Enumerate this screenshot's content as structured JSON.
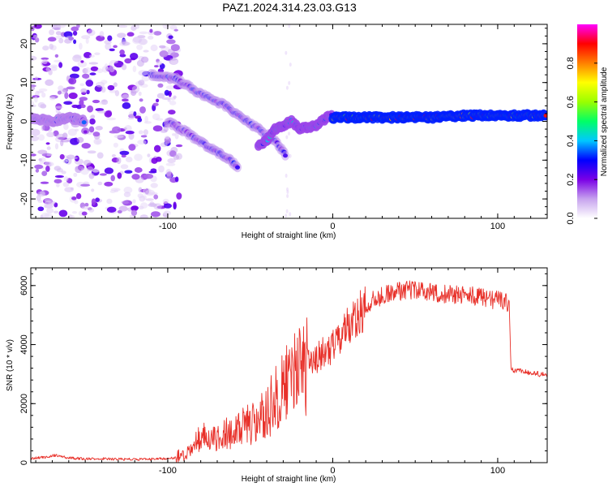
{
  "title": "PAZ1.2024.314.23.03.G13",
  "chart_data": [
    {
      "type": "heatmap",
      "title": "PAZ1.2024.314.23.03.G13",
      "xlabel": "Height of straight line (km)",
      "ylabel": "Frequency (Hz)",
      "xlim": [
        -183,
        130
      ],
      "ylim": [
        -25,
        25
      ],
      "xticks": [
        -100,
        0,
        100
      ],
      "yticks": [
        -20,
        -10,
        0,
        10,
        20
      ],
      "colorbar": {
        "label": "Normalized spectral amplitude",
        "range": [
          0,
          1
        ],
        "ticks": [
          0.0,
          0.2,
          0.4,
          0.6,
          0.8
        ],
        "colormap": [
          "#ffffff",
          "#c7a3ee",
          "#7a00e6",
          "#0000ff",
          "#00c8ff",
          "#00ff66",
          "#9aff00",
          "#ffff00",
          "#ff8000",
          "#ff0000",
          "#ff00ff"
        ]
      },
      "ridges": [
        {
          "name": "",
          "x": [
            -183,
            -170,
            -160,
            -150
          ],
          "y": [
            1,
            0,
            1,
            0
          ],
          "amplitude": 0.35
        },
        {
          "name": "",
          "x": [
            -110,
            -95,
            -80,
            -65,
            -55,
            -45,
            -35,
            -28
          ],
          "y": [
            12,
            11,
            7,
            4,
            1,
            -2,
            -5,
            -9
          ],
          "amplitude": 0.3
        },
        {
          "name": "",
          "x": [
            -100,
            -88,
            -78,
            -70,
            -62,
            -57
          ],
          "y": [
            0,
            -3,
            -6,
            -8,
            -10,
            -12
          ],
          "amplitude": 0.3
        },
        {
          "name": "",
          "x": [
            -45,
            -40,
            -35,
            -30,
            -25,
            -20,
            -10,
            0
          ],
          "y": [
            -6,
            -5,
            -2,
            -1,
            0,
            -2,
            -1,
            2
          ],
          "amplitude": 0.45
        },
        {
          "name": "",
          "x": [
            0,
            20,
            40,
            60,
            80,
            100,
            120,
            130
          ],
          "y": [
            1,
            1,
            1,
            1,
            1.5,
            1.5,
            1.5,
            1.5
          ],
          "amplitude": 0.9
        }
      ]
    },
    {
      "type": "line",
      "xlabel": "Height of straight line (km)",
      "ylabel": "SNR (10 * v/v)",
      "xlim": [
        -183,
        130
      ],
      "ylim": [
        0,
        6600
      ],
      "xticks": [
        -100,
        0,
        100
      ],
      "yticks": [
        0,
        2000,
        4000,
        6000
      ],
      "color": "#e8312a",
      "series": [
        {
          "name": "",
          "x": [
            -183,
            -175,
            -168,
            -160,
            -150,
            -140,
            -130,
            -120,
            -110,
            -100,
            -95,
            -90,
            -85,
            -80,
            -75,
            -70,
            -65,
            -60,
            -55,
            -50,
            -45,
            -40,
            -35,
            -30,
            -25,
            -20,
            -15,
            -10,
            -5,
            0,
            5,
            10,
            15,
            20,
            25,
            30,
            35,
            40,
            45,
            50,
            55,
            60,
            65,
            70,
            75,
            80,
            85,
            90,
            95,
            100,
            105,
            107,
            108,
            110,
            115,
            120,
            125,
            130
          ],
          "y": [
            150,
            180,
            250,
            160,
            130,
            140,
            120,
            110,
            120,
            130,
            170,
            250,
            500,
            900,
            950,
            800,
            1000,
            950,
            1200,
            1300,
            1400,
            1700,
            2100,
            2400,
            2800,
            3100,
            3300,
            3500,
            3750,
            3900,
            4300,
            4650,
            5000,
            5300,
            5550,
            5650,
            5750,
            5800,
            5850,
            5850,
            5800,
            5780,
            5750,
            5700,
            5700,
            5650,
            5650,
            5600,
            5550,
            5500,
            5450,
            5400,
            3200,
            3100,
            3100,
            3050,
            3000,
            3000
          ]
        }
      ]
    }
  ]
}
